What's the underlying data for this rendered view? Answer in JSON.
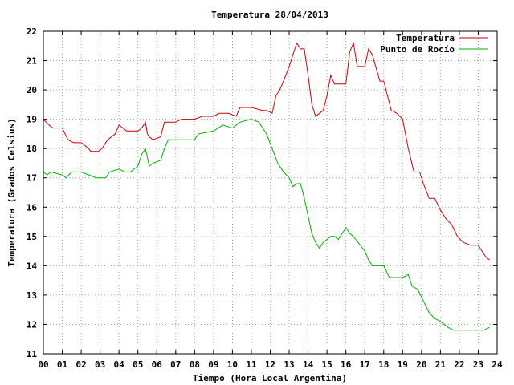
{
  "chart_data": {
    "type": "line",
    "title": "Temperatura 28/04/2013",
    "xlabel": "Tiempo (Hora Local Argentina)",
    "ylabel": "Temperatura (Grados Celsius)",
    "xlim": [
      0,
      24
    ],
    "ylim": [
      11,
      22
    ],
    "x_ticks": [
      "00",
      "01",
      "02",
      "03",
      "04",
      "05",
      "06",
      "07",
      "08",
      "09",
      "10",
      "11",
      "12",
      "13",
      "14",
      "15",
      "16",
      "17",
      "18",
      "19",
      "20",
      "21",
      "22",
      "23",
      "24"
    ],
    "y_ticks": [
      11,
      12,
      13,
      14,
      15,
      16,
      17,
      18,
      19,
      20,
      21,
      22
    ],
    "grid": true,
    "legend_position": "top-right",
    "series": [
      {
        "name": "Temperatura",
        "color": "#cc0000",
        "x": [
          0.0,
          0.3,
          0.5,
          1.0,
          1.3,
          1.6,
          2.0,
          2.4,
          2.5,
          2.9,
          3.1,
          3.4,
          3.8,
          4.0,
          4.2,
          4.4,
          4.6,
          5.0,
          5.2,
          5.4,
          5.5,
          5.6,
          5.8,
          6.2,
          6.4,
          6.6,
          7.0,
          7.3,
          8.0,
          8.4,
          9.0,
          9.3,
          9.8,
          10.2,
          10.4,
          11.0,
          11.6,
          11.8,
          12.1,
          12.3,
          12.5,
          12.7,
          13.0,
          13.2,
          13.4,
          13.6,
          13.8,
          14.0,
          14.2,
          14.4,
          14.6,
          14.8,
          15.0,
          15.2,
          15.4,
          15.6,
          16.0,
          16.2,
          16.4,
          16.6,
          17.0,
          17.2,
          17.4,
          17.8,
          18.0,
          18.2,
          18.4,
          18.7,
          19.0,
          19.3,
          19.6,
          19.9,
          20.1,
          20.4,
          20.7,
          21.0,
          21.3,
          21.6,
          21.9,
          22.2,
          22.6,
          23.0,
          23.2,
          23.4,
          23.6
        ],
        "values": [
          19.0,
          18.8,
          18.7,
          18.7,
          18.3,
          18.2,
          18.2,
          18.0,
          17.9,
          17.9,
          18.0,
          18.3,
          18.5,
          18.8,
          18.7,
          18.6,
          18.6,
          18.6,
          18.7,
          18.9,
          18.5,
          18.4,
          18.3,
          18.4,
          18.9,
          18.9,
          18.9,
          19.0,
          19.0,
          19.1,
          19.1,
          19.2,
          19.2,
          19.1,
          19.4,
          19.4,
          19.3,
          19.3,
          19.2,
          19.8,
          20.0,
          20.3,
          20.8,
          21.2,
          21.6,
          21.4,
          21.4,
          20.5,
          19.5,
          19.1,
          19.2,
          19.3,
          19.8,
          20.5,
          20.2,
          20.2,
          20.2,
          21.3,
          21.6,
          20.8,
          20.8,
          21.4,
          21.2,
          20.3,
          20.3,
          19.8,
          19.3,
          19.2,
          19.0,
          18.0,
          17.2,
          17.2,
          16.8,
          16.3,
          16.3,
          15.9,
          15.6,
          15.4,
          15.0,
          14.8,
          14.7,
          14.7,
          14.5,
          14.3,
          14.2
        ]
      },
      {
        "name": "Punto de Rocío",
        "color": "#00b000",
        "x": [
          0.0,
          0.2,
          0.4,
          1.0,
          1.2,
          1.5,
          2.0,
          2.4,
          2.8,
          3.3,
          3.5,
          4.0,
          4.3,
          4.6,
          5.0,
          5.2,
          5.4,
          5.6,
          5.8,
          6.2,
          6.4,
          6.6,
          7.0,
          8.0,
          8.2,
          9.0,
          9.5,
          10.0,
          10.4,
          11.0,
          11.4,
          11.8,
          12.1,
          12.4,
          12.7,
          13.0,
          13.2,
          13.4,
          13.6,
          13.8,
          14.0,
          14.2,
          14.4,
          14.6,
          14.8,
          15.0,
          15.2,
          15.4,
          15.6,
          16.0,
          16.2,
          16.4,
          17.0,
          17.2,
          17.4,
          17.6,
          18.0,
          18.3,
          18.6,
          19.0,
          19.3,
          19.5,
          19.8,
          20.1,
          20.4,
          20.7,
          21.0,
          21.4,
          21.7,
          22.0,
          22.5,
          23.0,
          23.3,
          23.6
        ],
        "values": [
          17.2,
          17.1,
          17.2,
          17.1,
          17.0,
          17.2,
          17.2,
          17.1,
          17.0,
          17.0,
          17.2,
          17.3,
          17.2,
          17.2,
          17.4,
          17.8,
          18.0,
          17.4,
          17.5,
          17.6,
          18.0,
          18.3,
          18.3,
          18.3,
          18.5,
          18.6,
          18.8,
          18.7,
          18.9,
          19.0,
          18.9,
          18.5,
          18.0,
          17.5,
          17.2,
          17.0,
          16.7,
          16.8,
          16.8,
          16.3,
          15.7,
          15.1,
          14.8,
          14.6,
          14.8,
          14.9,
          15.0,
          15.0,
          14.9,
          15.3,
          15.1,
          15.0,
          14.5,
          14.2,
          14.0,
          14.0,
          14.0,
          13.6,
          13.6,
          13.6,
          13.7,
          13.3,
          13.2,
          12.8,
          12.4,
          12.2,
          12.1,
          11.9,
          11.8,
          11.8,
          11.8,
          11.8,
          11.8,
          11.9
        ]
      }
    ]
  }
}
